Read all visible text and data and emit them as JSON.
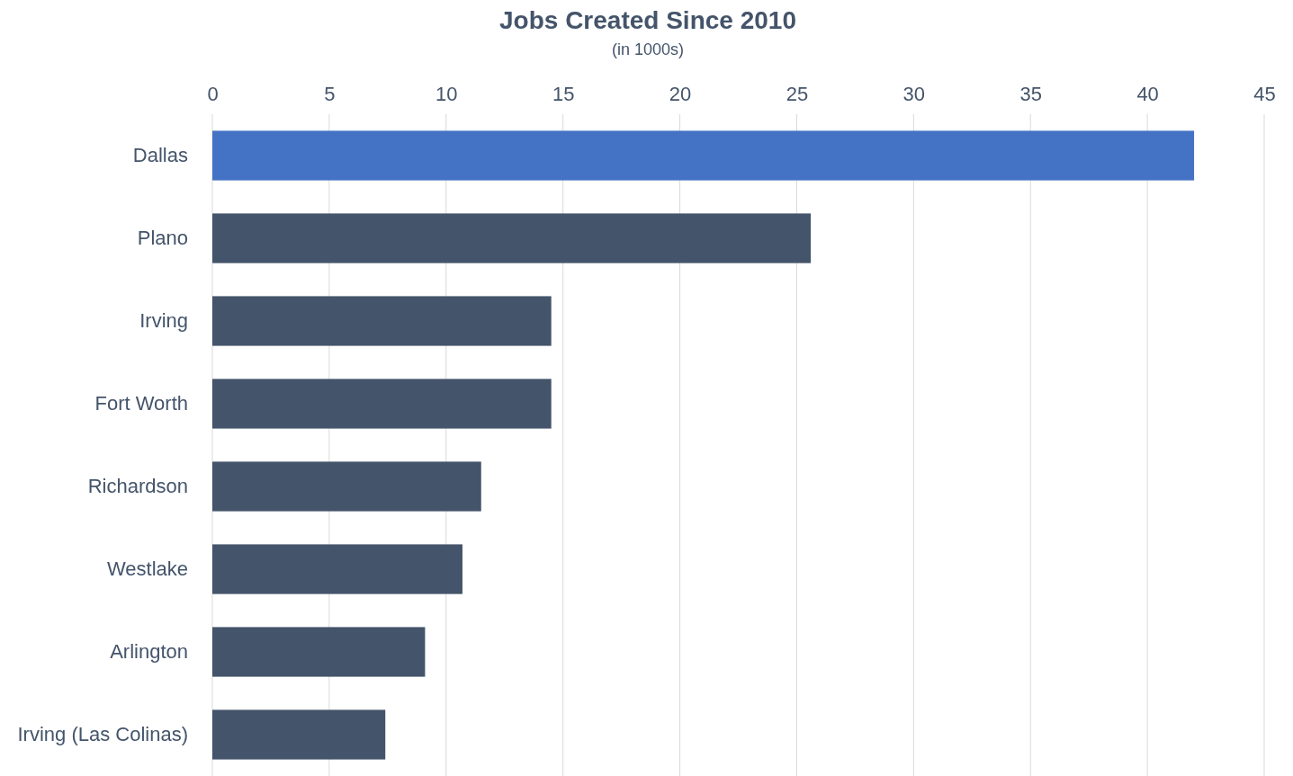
{
  "chart_data": {
    "type": "bar",
    "orientation": "horizontal",
    "title": "Jobs Created Since 2010",
    "subtitle": "(in 1000s)",
    "categories": [
      "Dallas",
      "Plano",
      "Irving",
      "Fort Worth",
      "Richardson",
      "Westlake",
      "Arlington",
      "Irving (Las Colinas)"
    ],
    "values": [
      42,
      25.6,
      14.5,
      14.5,
      11.5,
      10.7,
      9.1,
      7.4
    ],
    "colors": [
      "#4472c4",
      "#44546a",
      "#44546a",
      "#44546a",
      "#44546a",
      "#44546a",
      "#44546a",
      "#44546a"
    ],
    "xlim": [
      0,
      45
    ],
    "xticks": [
      0,
      5,
      10,
      15,
      20,
      25,
      30,
      35,
      40,
      45
    ],
    "grid": "x"
  }
}
